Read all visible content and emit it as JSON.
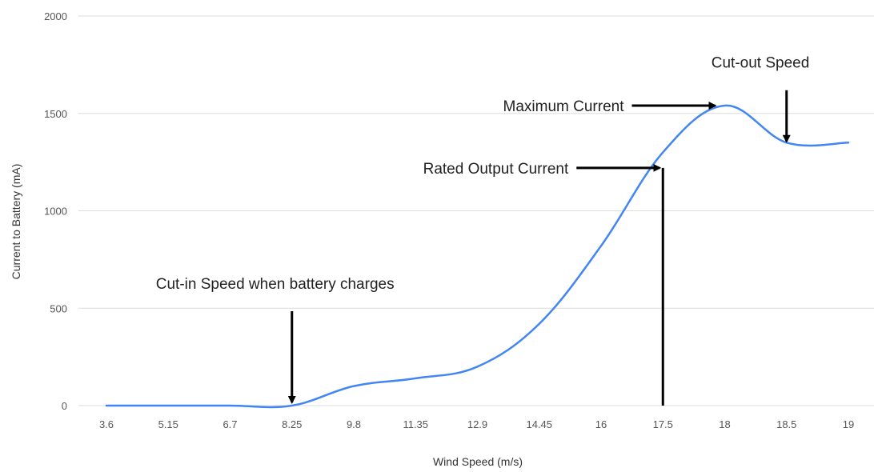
{
  "chart_data": {
    "type": "line",
    "title": "",
    "xlabel": "Wind Speed (m/s)",
    "ylabel": "Current to Battery (mA)",
    "ylim": [
      0,
      2000
    ],
    "yticks": [
      "0",
      "500",
      "1000",
      "1500",
      "2000"
    ],
    "categories": [
      "3.6",
      "5.15",
      "6.7",
      "8.25",
      "9.8",
      "11.35",
      "12.9",
      "14.45",
      "16",
      "17.5",
      "18",
      "18.5",
      "19"
    ],
    "series": [
      {
        "color": "#4285f4",
        "values": [
          0,
          0,
          0,
          0,
          100,
          140,
          200,
          420,
          820,
          1300,
          1540,
          1350,
          1350
        ]
      }
    ],
    "grid": true,
    "legend": "none",
    "annotations": [
      {
        "text": "Cut-in Speed when battery charges",
        "category": "8.25",
        "value": 0,
        "arrow": "down"
      },
      {
        "text": "Rated Output Current",
        "category": "17.5",
        "value": 1220,
        "arrow": "right"
      },
      {
        "text": "Maximum Current",
        "category": "18",
        "value": 1540,
        "arrow": "right"
      },
      {
        "text": "Cut-out Speed",
        "category": "18.5",
        "value": 1340,
        "arrow": "down"
      }
    ]
  }
}
